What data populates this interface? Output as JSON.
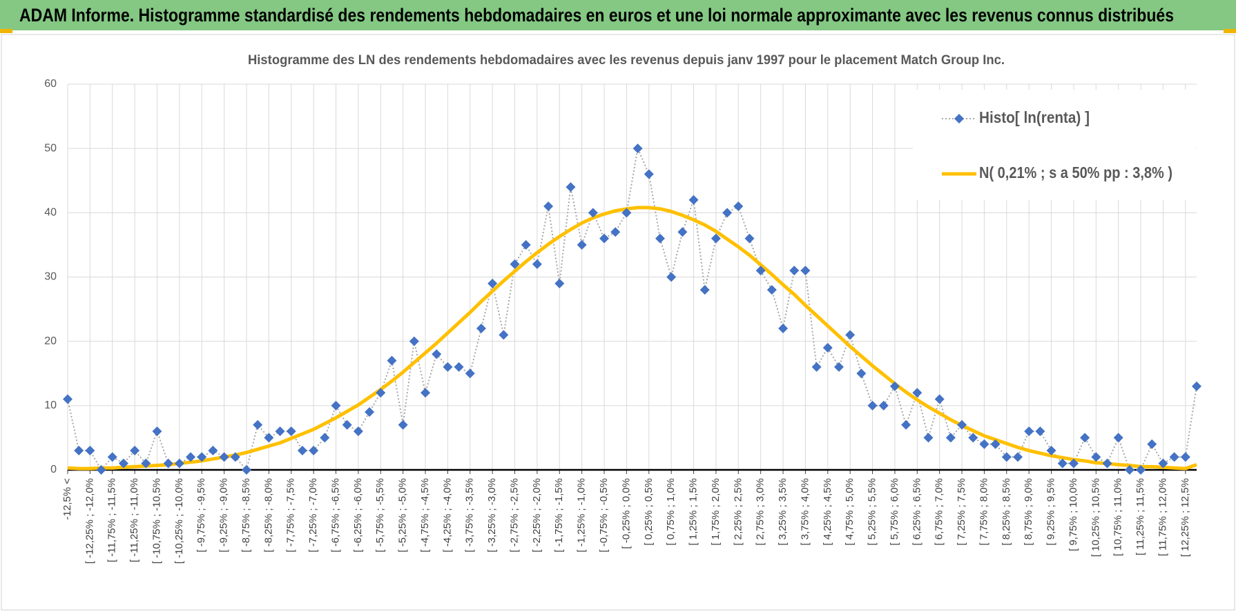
{
  "header": {
    "title": "ADAM Informe. Histogramme standardisé des rendements hebdomadaires en euros et une loi normale approximante avec les revenus connus distribués"
  },
  "chart_data": {
    "type": "line",
    "title": "Histogramme  des LN des rendements hebdomadaires avec les revenus depuis janv 1997 pour le placement Match Group Inc.",
    "categories": [
      "-12,5% <",
      null,
      "[ -12,25% ; -12,0%",
      null,
      "[ -11,75% ; -11,5%",
      null,
      "[ -11,25% ; -11,0%",
      null,
      "[ -10,75% ; -10,5%",
      null,
      "[ -10,25% ; -10,0%",
      null,
      "[ -9,75% ; -9,5%",
      null,
      "[ -9,25% ; -9,0%",
      null,
      "[ -8,75% ; -8,5%",
      null,
      "[ -8,25% ; -8,0%",
      null,
      "[ -7,75% ; -7,5%",
      null,
      "[ -7,25% ; -7,0%",
      null,
      "[ -6,75% ; -6,5%",
      null,
      "[ -6,25% ; -6,0%",
      null,
      "[ -5,75% ; -5,5%",
      null,
      "[ -5,25% ; -5,0%",
      null,
      "[ -4,75% ; -4,5%",
      null,
      "[ -4,25% ; -4,0%",
      null,
      "[ -3,75% ; -3,5%",
      null,
      "[ -3,25% ; -3,0%",
      null,
      "[ -2,75% ; -2,5%",
      null,
      "[ -2,25% ; -2,0%",
      null,
      "[ -1,75% ; -1,5%",
      null,
      "[ -1,25% ; -1,0%",
      null,
      "[ -0,75% ; -0,5%",
      null,
      "[ -0,25% ; 0,0%",
      null,
      "[ 0,25% ; 0,5%",
      null,
      "[ 0,75% ; 1,0%",
      null,
      "[ 1,25% ; 1,5%",
      null,
      "[ 1,75% ; 2,0%",
      null,
      "[ 2,25% ; 2,5%",
      null,
      "[ 2,75% ; 3,0%",
      null,
      "[ 3,25% ; 3,5%",
      null,
      "[ 3,75% ; 4,0%",
      null,
      "[ 4,25% ; 4,5%",
      null,
      "[ 4,75% ; 5,0%",
      null,
      "[ 5,25% ; 5,5%",
      null,
      "[ 5,75% ; 6,0%",
      null,
      "[ 6,25% ; 6,5%",
      null,
      "[ 6,75% ; 7,0%",
      null,
      "[ 7,25% ; 7,5%",
      null,
      "[ 7,75% ; 8,0%",
      null,
      "[ 8,25% ; 8,5%",
      null,
      "[ 8,75% ; 9,0%",
      null,
      "[ 9,25% ; 9,5%",
      null,
      "[ 9,75% ; 10,0%",
      null,
      "[ 10,25% ; 10,5%",
      null,
      "[ 10,75% ; 11,0%",
      null,
      "[ 11,25% ; 11,5%",
      null,
      "[ 11,75% ; 12,0%",
      null,
      "[ 12,25% ; 12,5%",
      null
    ],
    "series": [
      {
        "name": "Histo[ ln(renta) ]",
        "color": "#4472c4",
        "line_color": "#a6a6a6",
        "values": [
          11,
          3,
          3,
          0,
          2,
          1,
          3,
          1,
          6,
          1,
          1,
          2,
          2,
          3,
          2,
          2,
          0,
          7,
          5,
          6,
          6,
          3,
          3,
          5,
          10,
          7,
          6,
          9,
          12,
          17,
          7,
          20,
          12,
          18,
          16,
          16,
          15,
          22,
          29,
          21,
          32,
          35,
          32,
          41,
          29,
          44,
          35,
          40,
          36,
          37,
          40,
          50,
          46,
          36,
          30,
          37,
          42,
          28,
          36,
          40,
          41,
          36,
          31,
          28,
          22,
          31,
          31,
          16,
          19,
          16,
          21,
          15,
          10,
          10,
          13,
          7,
          12,
          5,
          11,
          5,
          7,
          5,
          4,
          4,
          2,
          2,
          6,
          6,
          3,
          1,
          1,
          5,
          2,
          1,
          5,
          0,
          0,
          4,
          1,
          2,
          2,
          13
        ]
      },
      {
        "name": "N( 0,21% ; s a 50% pp : 3,8% )",
        "color": "#ffc000",
        "values": [
          0.3,
          0.2,
          0.2,
          0.3,
          0.3,
          0.4,
          0.5,
          0.6,
          0.7,
          0.8,
          1.0,
          1.2,
          1.4,
          1.7,
          2.0,
          2.3,
          2.7,
          3.2,
          3.7,
          4.2,
          4.9,
          5.6,
          6.3,
          7.2,
          8.1,
          9.1,
          10.1,
          11.3,
          12.5,
          13.8,
          15.2,
          16.7,
          18.2,
          19.7,
          21.3,
          22.9,
          24.5,
          26.2,
          27.8,
          29.4,
          30.9,
          32.4,
          33.8,
          35.1,
          36.3,
          37.4,
          38.4,
          39.2,
          39.8,
          40.3,
          40.6,
          40.8,
          40.8,
          40.6,
          40.2,
          39.6,
          38.9,
          38.1,
          37.1,
          35.9,
          34.7,
          33.4,
          31.9,
          30.4,
          28.8,
          27.3,
          25.6,
          24.0,
          22.4,
          20.8,
          19.2,
          17.7,
          16.2,
          14.8,
          13.4,
          12.1,
          10.9,
          9.8,
          8.8,
          7.8,
          6.9,
          6.1,
          5.3,
          4.7,
          4.1,
          3.5,
          3.0,
          2.6,
          2.2,
          1.9,
          1.6,
          1.4,
          1.1,
          1.0,
          0.8,
          0.7,
          0.5,
          0.5,
          0.4,
          0.3,
          0.2,
          0.8
        ]
      }
    ],
    "ylim": [
      0,
      60
    ],
    "yticks": [
      0,
      10,
      20,
      30,
      40,
      50,
      60
    ],
    "grid": true,
    "legend": "top-right"
  }
}
